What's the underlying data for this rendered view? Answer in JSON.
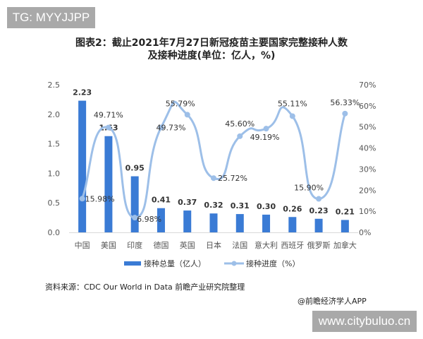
{
  "watermark_top": "TG: MYYJJPP",
  "watermark_bottom": "www.citybuluo.cn",
  "title_line1": "图表2：截止2021年7月27日新冠疫苗主要国家完整接种人数",
  "title_line2": "及接种进度(单位：亿人，%)",
  "source": "资料来源：CDC Our World in Data 前瞻产业研究院整理",
  "credit": "@前瞻经济学人APP",
  "colors": {
    "bar": "#3a7bd5",
    "line": "#9dbfe8",
    "axis_text": "#555555"
  },
  "chart_data": {
    "type": "bar+line",
    "title": "截止2021年7月27日新冠疫苗主要国家完整接种人数及接种进度(单位：亿人，%)",
    "categories": [
      "中国",
      "美国",
      "印度",
      "德国",
      "英国",
      "日本",
      "法国",
      "意大利",
      "西班牙",
      "俄罗斯",
      "加拿大"
    ],
    "series": [
      {
        "name": "接种总量（亿人）",
        "type": "bar",
        "axis": "left",
        "values": [
          2.23,
          1.63,
          0.95,
          0.41,
          0.37,
          0.32,
          0.31,
          0.3,
          0.26,
          0.23,
          0.21
        ],
        "labels": [
          "2.23",
          "1.63",
          "0.95",
          "0.41",
          "0.37",
          "0.32",
          "0.31",
          "0.30",
          "0.26",
          "0.23",
          "0.21"
        ]
      },
      {
        "name": "接种进度（%）",
        "type": "line",
        "axis": "right",
        "values": [
          15.98,
          49.71,
          6.98,
          49.73,
          55.79,
          25.72,
          45.6,
          49.19,
          55.11,
          15.9,
          56.33
        ],
        "labels": [
          "15.98%",
          "49.71%",
          "6.98%",
          "49.73%",
          "55.79%",
          "25.72%",
          "45.60%",
          "49.19%",
          "55.11%",
          "15.90%",
          "56.33%"
        ]
      }
    ],
    "left_axis": {
      "ylim": [
        0,
        2.5
      ],
      "ticks": [
        "0.0",
        "0.5",
        "1.0",
        "1.5",
        "2.0",
        "2.5"
      ]
    },
    "right_axis": {
      "ylim": [
        0,
        70
      ],
      "ticks": [
        "0%",
        "10%",
        "20%",
        "30%",
        "40%",
        "50%",
        "60%",
        "70%"
      ]
    },
    "legend": [
      "接种总量（亿人）",
      "接种进度（%）"
    ],
    "legend_position": "bottom",
    "grid": false
  }
}
